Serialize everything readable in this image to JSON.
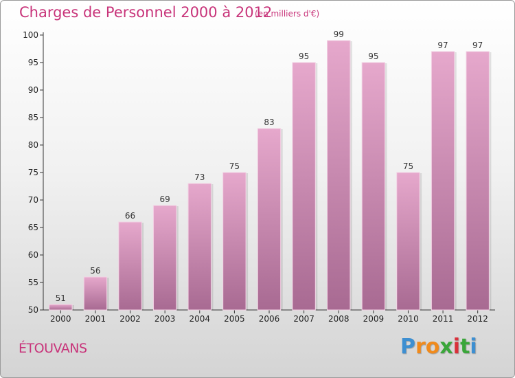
{
  "title": "Charges de Personnel 2000 à 2012",
  "subtitle": "(en milliers d'€)",
  "commune": "ÉTOUVANS",
  "logo": {
    "letters": [
      "P",
      "r",
      "o",
      "x",
      "i",
      "t",
      "i"
    ],
    "colors": [
      "#3d8fd1",
      "#f08a1c",
      "#f08a1c",
      "#3aa63a",
      "#d9303a",
      "#3aa63a",
      "#3d8fd1"
    ]
  },
  "colors": {
    "bar_light": "#e6a8cc",
    "bar_dark": "#a86a92",
    "accent": "#c8347a"
  },
  "chart_data": {
    "type": "bar",
    "categories": [
      "2000",
      "2001",
      "2002",
      "2003",
      "2004",
      "2005",
      "2006",
      "2007",
      "2008",
      "2009",
      "2010",
      "2011",
      "2012"
    ],
    "values": [
      51,
      56,
      66,
      69,
      73,
      75,
      83,
      95,
      99,
      95,
      75,
      97,
      97
    ],
    "data_labels": [
      "51",
      "56",
      "66",
      "69",
      "73",
      "75",
      "83",
      "95",
      "99",
      "95",
      "75",
      "97",
      "97"
    ],
    "yticks": [
      "50",
      "55",
      "60",
      "65",
      "70",
      "75",
      "80",
      "85",
      "90",
      "95",
      "100"
    ],
    "ylim": [
      50,
      100
    ],
    "grid": false,
    "legend": "none"
  }
}
